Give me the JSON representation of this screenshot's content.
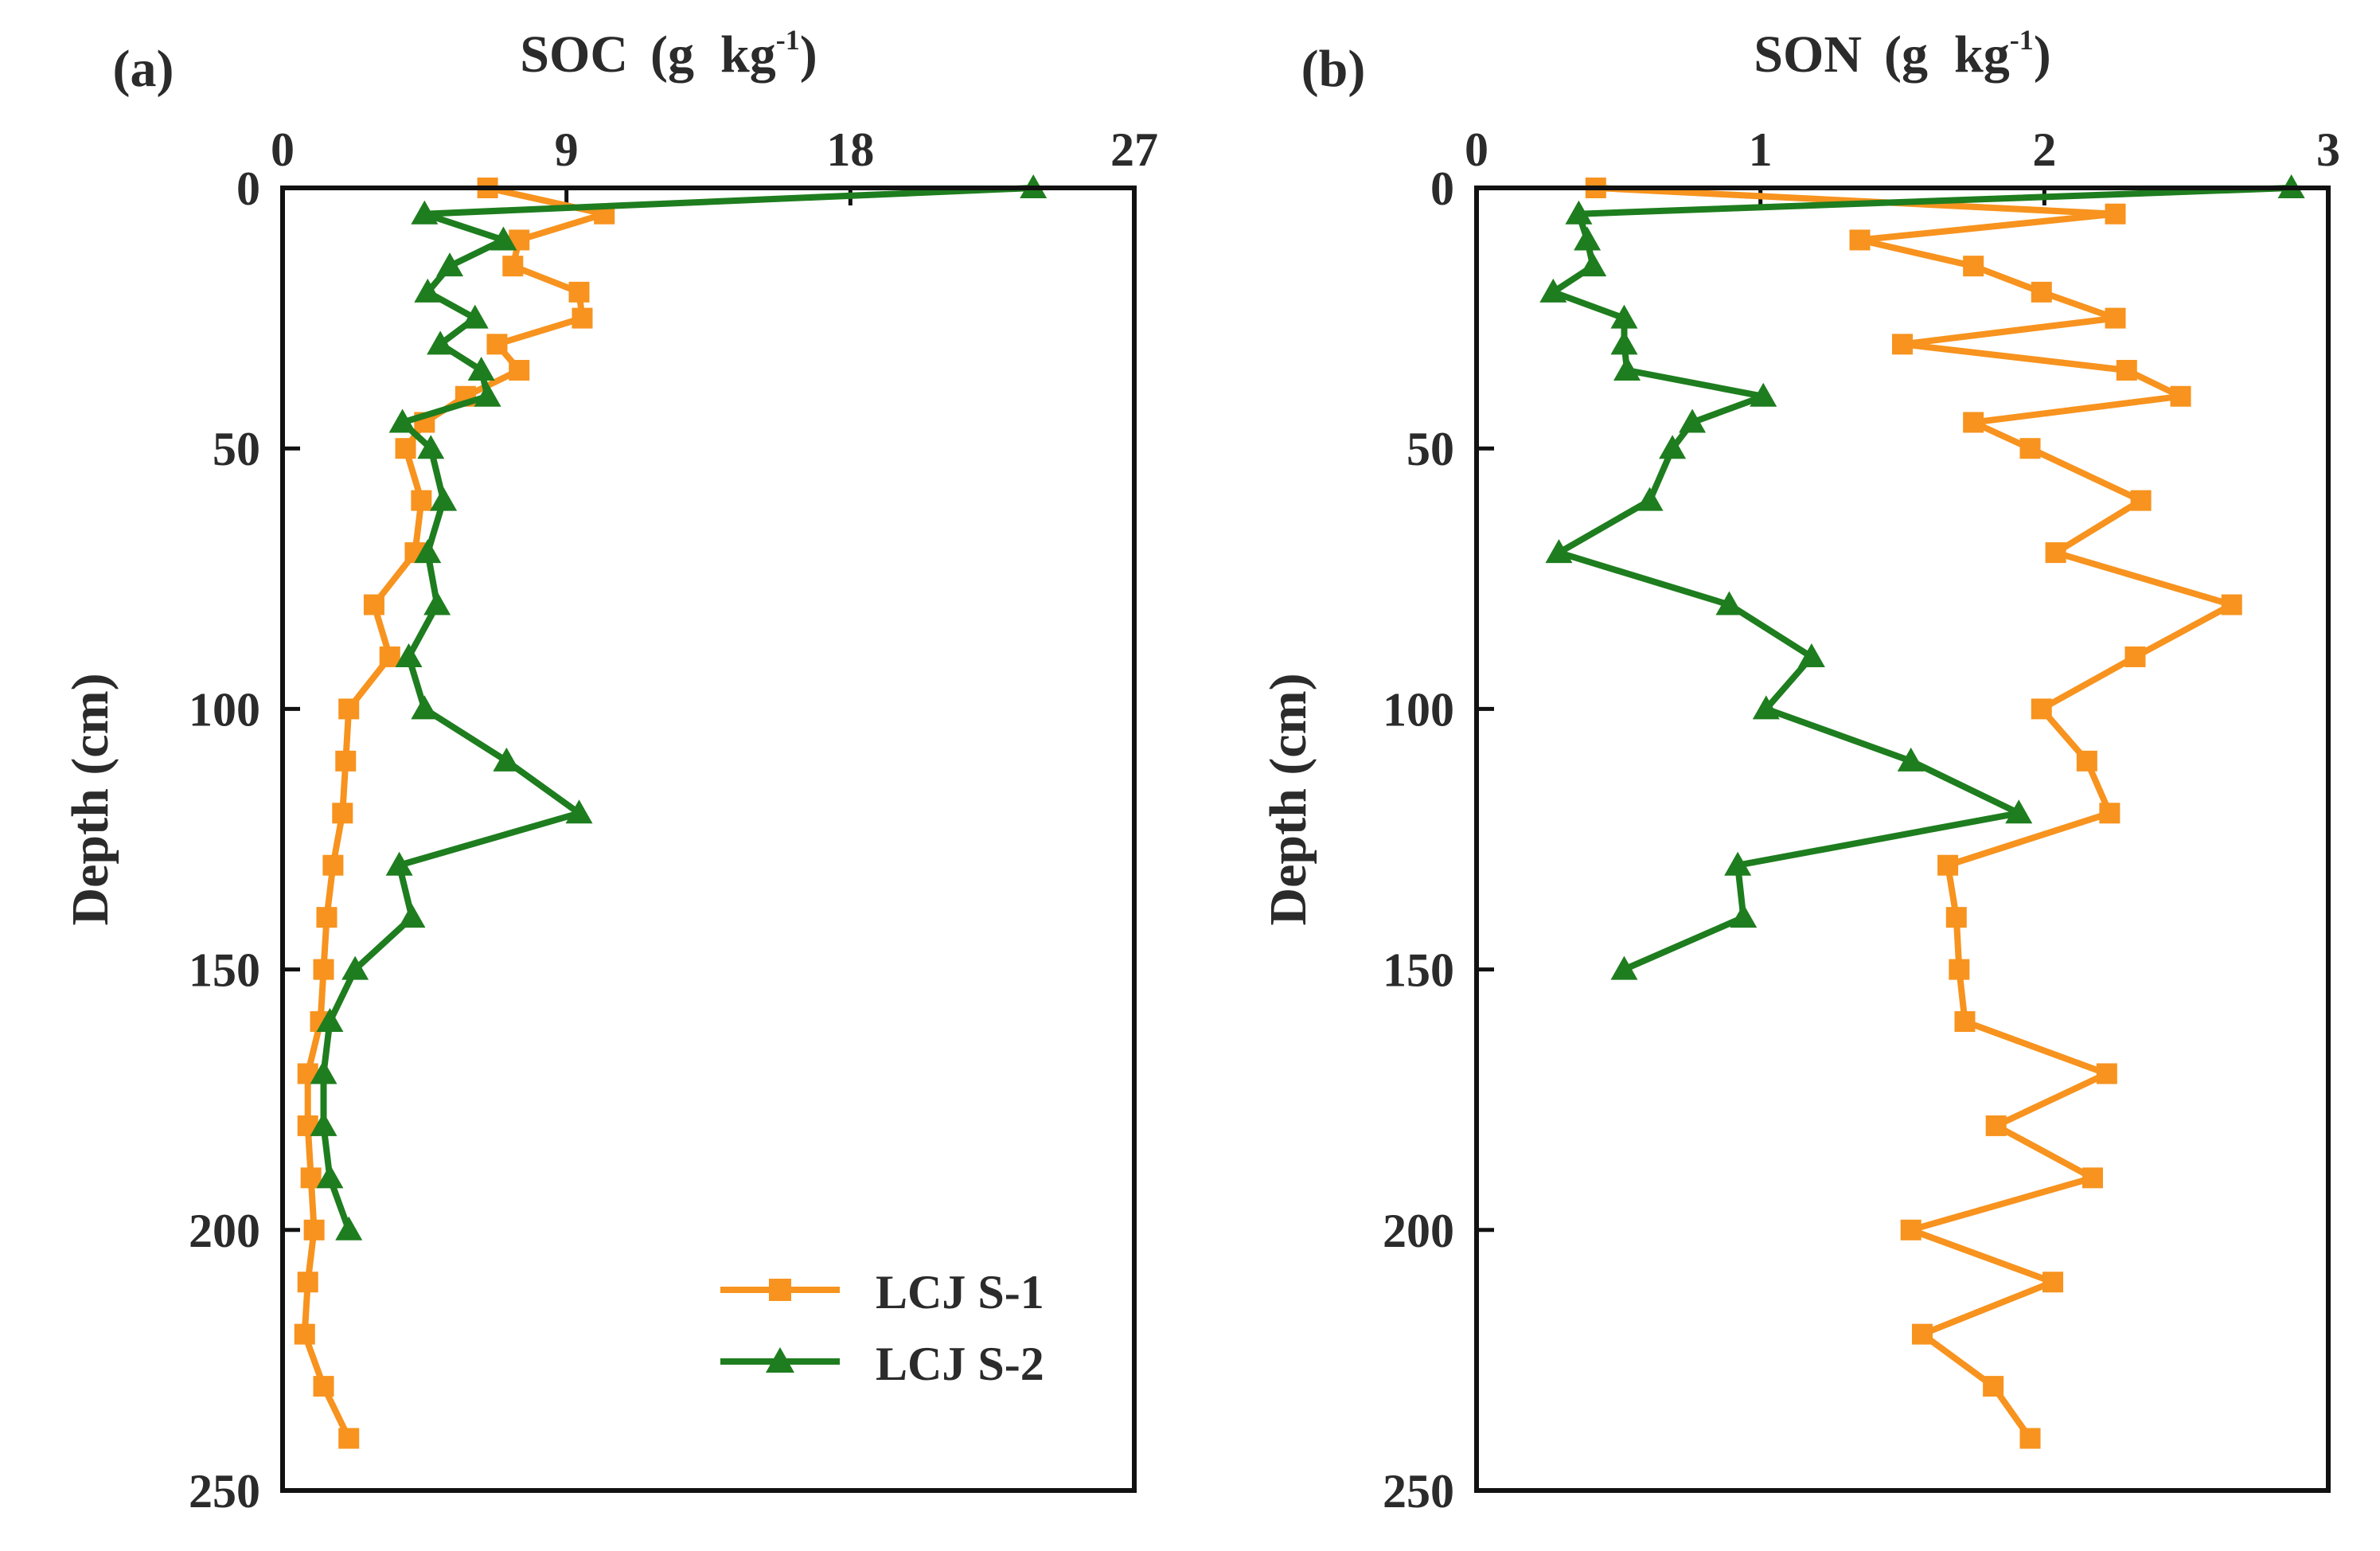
{
  "chart_data": [
    {
      "panel_label": "(a)",
      "type": "line",
      "orientation": "depth-profile",
      "title": "",
      "xlabel": "SOC",
      "xunit_open": "(g  kg",
      "xunit_sup": "-1",
      "xunit_close": ")",
      "ylabel": "Depth (cm)",
      "xlim": [
        0,
        27
      ],
      "ylim": [
        0,
        250
      ],
      "xticks": [
        "0",
        "9",
        "18",
        "27"
      ],
      "yticks": [
        "0",
        "50",
        "100",
        "150",
        "200",
        "250"
      ],
      "x_axis_position": "top",
      "y_inverted": true,
      "legend_position": "bottom-right",
      "series": [
        {
          "name": "LCJ S-1",
          "color": "#f7931e",
          "marker": "square",
          "depth": [
            0,
            5,
            10,
            15,
            20,
            25,
            30,
            35,
            40,
            45,
            50,
            60,
            70,
            80,
            90,
            100,
            110,
            120,
            130,
            140,
            150,
            160,
            170,
            180,
            190,
            200,
            210,
            220,
            230,
            240
          ],
          "values": [
            6.5,
            10.2,
            7.5,
            7.3,
            9.4,
            9.5,
            6.8,
            7.5,
            5.8,
            4.5,
            3.9,
            4.4,
            4.2,
            2.9,
            3.4,
            2.1,
            2.0,
            1.9,
            1.6,
            1.4,
            1.3,
            1.2,
            0.8,
            0.8,
            0.9,
            1.0,
            0.8,
            0.7,
            1.3,
            2.1
          ]
        },
        {
          "name": "LCJ S-2",
          "color": "#1e7d1e",
          "marker": "triangle",
          "depth": [
            0,
            5,
            10,
            15,
            20,
            25,
            30,
            35,
            40,
            45,
            50,
            60,
            70,
            80,
            90,
            100,
            110,
            120,
            130,
            140,
            150,
            160,
            170,
            180,
            190,
            200
          ],
          "values": [
            23.8,
            4.5,
            7.0,
            5.3,
            4.6,
            6.1,
            5.0,
            6.3,
            6.5,
            3.8,
            4.7,
            5.1,
            4.6,
            4.9,
            4.0,
            4.5,
            7.1,
            9.4,
            3.7,
            4.1,
            2.3,
            1.5,
            1.3,
            1.3,
            1.5,
            2.1
          ]
        }
      ]
    },
    {
      "panel_label": "(b)",
      "type": "line",
      "orientation": "depth-profile",
      "title": "",
      "xlabel": "SON",
      "xunit_open": "(g  kg",
      "xunit_sup": "-1",
      "xunit_close": ")",
      "ylabel": "Depth (cm)",
      "xlim": [
        0,
        3
      ],
      "ylim": [
        0,
        250
      ],
      "xticks": [
        "0",
        "1",
        "2",
        "3"
      ],
      "yticks": [
        "0",
        "50",
        "100",
        "150",
        "200",
        "250"
      ],
      "x_axis_position": "top",
      "y_inverted": true,
      "series": [
        {
          "name": "LCJ S-1",
          "color": "#f7931e",
          "marker": "square",
          "depth": [
            0,
            5,
            10,
            15,
            20,
            25,
            30,
            35,
            40,
            45,
            50,
            60,
            70,
            80,
            90,
            100,
            110,
            120,
            130,
            140,
            150,
            160,
            170,
            180,
            190,
            200,
            210,
            220,
            230,
            240
          ],
          "values": [
            0.42,
            2.25,
            1.35,
            1.75,
            1.99,
            2.25,
            1.5,
            2.29,
            2.48,
            1.75,
            1.95,
            2.34,
            2.04,
            2.66,
            2.32,
            1.99,
            2.15,
            2.23,
            1.66,
            1.69,
            1.7,
            1.72,
            2.22,
            1.83,
            2.17,
            1.53,
            2.03,
            1.57,
            1.82,
            1.95
          ]
        },
        {
          "name": "LCJ S-2",
          "color": "#1e7d1e",
          "marker": "triangle",
          "depth": [
            0,
            5,
            10,
            15,
            20,
            25,
            30,
            35,
            40,
            45,
            50,
            60,
            70,
            80,
            90,
            100,
            110,
            120,
            130,
            140,
            150
          ],
          "values": [
            2.87,
            0.36,
            0.39,
            0.41,
            0.27,
            0.52,
            0.52,
            0.53,
            1.01,
            0.76,
            0.69,
            0.61,
            0.29,
            0.89,
            1.18,
            1.02,
            1.53,
            1.91,
            0.92,
            0.94,
            0.52
          ]
        }
      ]
    }
  ]
}
